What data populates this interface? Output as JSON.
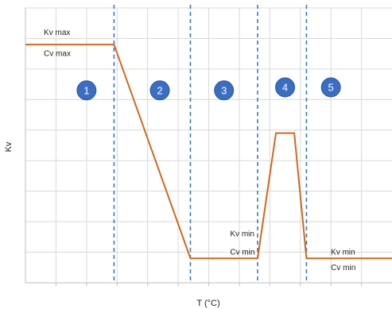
{
  "chart_data": {
    "type": "line",
    "title": "",
    "xlabel": "T (°C)",
    "ylabel": "Kv",
    "xlim": [
      0,
      12
    ],
    "ylim": [
      0,
      9
    ],
    "grid": true,
    "series": [
      {
        "points": [
          [
            0,
            7.8
          ],
          [
            2.9,
            7.8
          ],
          [
            5.4,
            0.8
          ],
          [
            7.6,
            0.8
          ],
          [
            8.2,
            4.9
          ],
          [
            8.8,
            4.9
          ],
          [
            9.2,
            0.8
          ],
          [
            12,
            0.8
          ]
        ]
      }
    ],
    "region_boundaries": [
      2.9,
      5.4,
      7.6,
      9.2
    ],
    "regions": [
      {
        "label": "1",
        "x": 2.0,
        "y": 6.3
      },
      {
        "label": "2",
        "x": 4.4,
        "y": 6.3
      },
      {
        "label": "3",
        "x": 6.5,
        "y": 6.3
      },
      {
        "label": "4",
        "x": 8.5,
        "y": 6.4
      },
      {
        "label": "5",
        "x": 10.0,
        "y": 6.4
      }
    ],
    "annotations": [
      {
        "text": "Kv max",
        "x": 0.6,
        "y": 8.2
      },
      {
        "text": "Cv max",
        "x": 0.6,
        "y": 7.5
      },
      {
        "text": "Kv min",
        "x": 6.7,
        "y": 1.6
      },
      {
        "text": "Cv min",
        "x": 6.7,
        "y": 1.0
      },
      {
        "text": "Kv min",
        "x": 10.0,
        "y": 1.0
      },
      {
        "text": "Cv min",
        "x": 10.0,
        "y": 0.5
      }
    ],
    "colors": {
      "line": "#d2691e",
      "dashed": "#3a78c9",
      "grid": "#d9d9d9",
      "circle": "#3a6ec4"
    }
  }
}
